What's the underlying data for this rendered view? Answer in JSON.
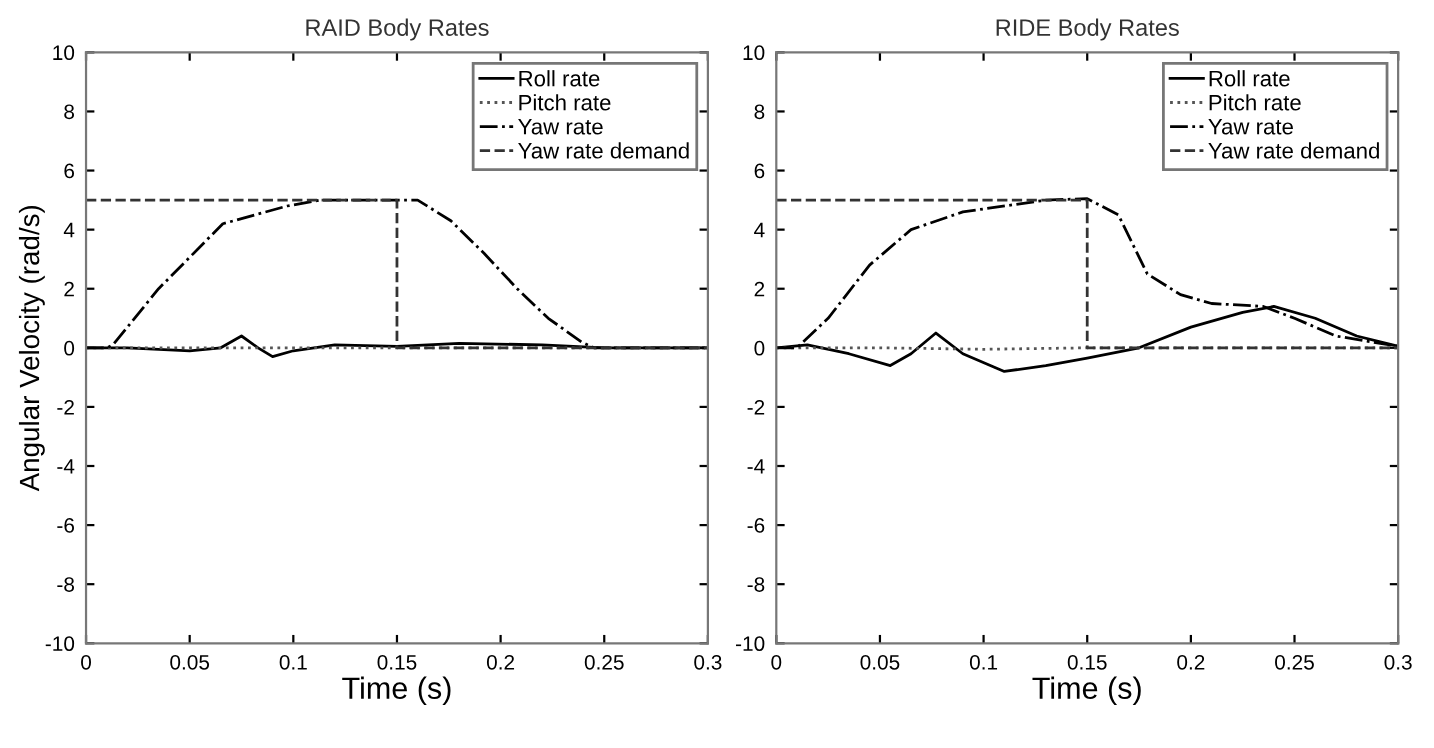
{
  "chart_data": [
    {
      "type": "line",
      "title": "RAID Body Rates",
      "xlabel": "Time (s)",
      "ylabel": "Angular Velocity (rad/s)",
      "xlim": [
        0,
        0.3
      ],
      "ylim": [
        -10,
        10
      ],
      "xticks": [
        0,
        0.05,
        0.1,
        0.15,
        0.2,
        0.25,
        0.3
      ],
      "yticks": [
        -10,
        -8,
        -6,
        -4,
        -2,
        0,
        2,
        4,
        6,
        8,
        10
      ],
      "grid": false,
      "legend": "top right",
      "series": [
        {
          "name": "Roll rate",
          "color": "#000000",
          "line_style": "solid",
          "x": [
            0,
            0.02,
            0.05,
            0.065,
            0.075,
            0.083,
            0.09,
            0.1,
            0.12,
            0.15,
            0.18,
            0.22,
            0.25,
            0.3
          ],
          "values": [
            0,
            0,
            -0.1,
            0,
            0.4,
            0,
            -0.3,
            -0.1,
            0.1,
            0.05,
            0.15,
            0.1,
            0,
            0
          ]
        },
        {
          "name": "Pitch rate",
          "color": "#555555",
          "line_style": "dotted",
          "x": [
            0,
            0.1,
            0.2,
            0.3
          ],
          "values": [
            0,
            0,
            0,
            0
          ]
        },
        {
          "name": "Yaw rate",
          "color": "#000000",
          "line_style": "dashdot",
          "x": [
            0,
            0.01,
            0.013,
            0.035,
            0.066,
            0.097,
            0.113,
            0.16,
            0.176,
            0.192,
            0.208,
            0.223,
            0.239,
            0.245,
            0.3
          ],
          "values": [
            0,
            0,
            0.1,
            2,
            4.2,
            4.8,
            5,
            5,
            4.3,
            3.2,
            2,
            1,
            0.2,
            0,
            0
          ]
        },
        {
          "name": "Yaw rate demand",
          "color": "#333333",
          "line_style": "dashed",
          "x": [
            0,
            0.15,
            0.15,
            0.3
          ],
          "values": [
            5,
            5,
            0,
            0
          ]
        }
      ]
    },
    {
      "type": "line",
      "title": "RIDE Body Rates",
      "xlabel": "Time (s)",
      "xlim": [
        0,
        0.3
      ],
      "ylim": [
        -10,
        10
      ],
      "xticks": [
        0,
        0.05,
        0.1,
        0.15,
        0.2,
        0.25,
        0.3
      ],
      "yticks": [
        -10,
        -8,
        -6,
        -4,
        -2,
        0,
        2,
        4,
        6,
        8,
        10
      ],
      "grid": false,
      "legend": "top right",
      "series": [
        {
          "name": "Roll rate",
          "color": "#000000",
          "line_style": "solid",
          "x": [
            0,
            0.015,
            0.035,
            0.055,
            0.065,
            0.077,
            0.09,
            0.11,
            0.13,
            0.15,
            0.175,
            0.2,
            0.225,
            0.24,
            0.26,
            0.28,
            0.3
          ],
          "values": [
            0,
            0.1,
            -0.2,
            -0.6,
            -0.2,
            0.5,
            -0.2,
            -0.8,
            -0.6,
            -0.35,
            0,
            0.7,
            1.2,
            1.4,
            1,
            0.4,
            0.05
          ]
        },
        {
          "name": "Pitch rate",
          "color": "#555555",
          "line_style": "dotted",
          "x": [
            0,
            0.05,
            0.1,
            0.15,
            0.2,
            0.3
          ],
          "values": [
            0,
            0,
            -0.05,
            0,
            0,
            0
          ]
        },
        {
          "name": "Yaw rate",
          "color": "#000000",
          "line_style": "dashdot",
          "x": [
            0,
            0.01,
            0.025,
            0.045,
            0.065,
            0.09,
            0.13,
            0.15,
            0.165,
            0.179,
            0.195,
            0.21,
            0.235,
            0.25,
            0.27,
            0.3
          ],
          "values": [
            0,
            0,
            1,
            2.8,
            4,
            4.6,
            5,
            5.05,
            4.5,
            2.5,
            1.8,
            1.5,
            1.4,
            1,
            0.4,
            0.05
          ]
        },
        {
          "name": "Yaw rate demand",
          "color": "#333333",
          "line_style": "dashed",
          "x": [
            0,
            0.15,
            0.15,
            0.3
          ],
          "values": [
            5,
            5,
            0,
            0
          ]
        }
      ]
    }
  ]
}
